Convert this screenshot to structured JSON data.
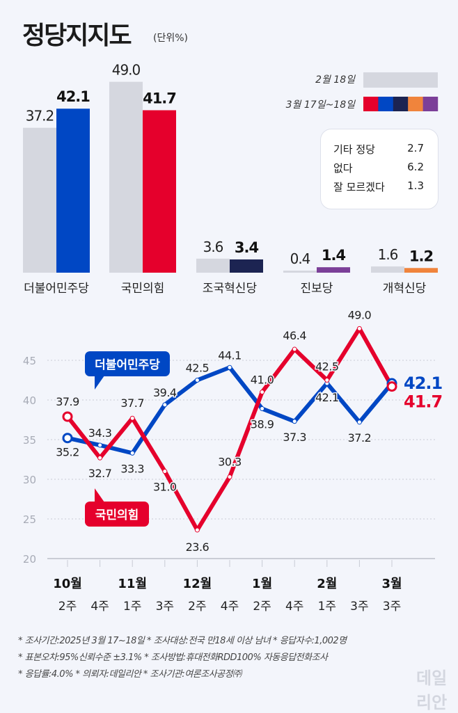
{
  "title": "정당지지도",
  "unit": "(단위%)",
  "legend": {
    "prev": "2월 18일",
    "curr": "3월 17일~18일"
  },
  "colors": {
    "prev": "#d5d7df",
    "minjoo": "#0047c4",
    "ppp": "#e5002c",
    "rebuilding": "#1c2452",
    "progressive": "#7b3f98",
    "reform": "#f0843c"
  },
  "others": [
    {
      "label": "기타 정당",
      "value": "2.7"
    },
    {
      "label": "없다",
      "value": "6.2"
    },
    {
      "label": "잘 모르겠다",
      "value": "1.3"
    }
  ],
  "chart_data": [
    {
      "type": "bar",
      "categories": [
        "더불어민주당",
        "국민의힘",
        "조국혁신당",
        "진보당",
        "개혁신당"
      ],
      "series": [
        {
          "name": "2월 18일",
          "values": [
            37.2,
            49.0,
            3.6,
            0.4,
            1.6
          ]
        },
        {
          "name": "3월 17일~18일",
          "values": [
            42.1,
            41.7,
            3.4,
            1.4,
            1.2
          ]
        }
      ],
      "bar_colors": [
        "#0047c4",
        "#e5002c",
        "#1c2452",
        "#7b3f98",
        "#f0843c"
      ],
      "legend": "top-right"
    },
    {
      "type": "line",
      "x": [
        "2주",
        "4주",
        "1주",
        "3주",
        "2주",
        "4주",
        "2주",
        "4주",
        "1주",
        "3주",
        "3주"
      ],
      "months": [
        {
          "label": "10월",
          "index": 0
        },
        {
          "label": "11월",
          "index": 2
        },
        {
          "label": "12월",
          "index": 4
        },
        {
          "label": "1월",
          "index": 6
        },
        {
          "label": "2월",
          "index": 8
        },
        {
          "label": "3월",
          "index": 10
        }
      ],
      "ylim": [
        20,
        45
      ],
      "yticks": [
        20,
        25,
        30,
        35,
        40,
        45
      ],
      "grid": true,
      "series": [
        {
          "name": "더불어민주당",
          "color": "#0047c4",
          "values": [
            35.2,
            34.3,
            33.3,
            39.4,
            42.5,
            44.1,
            38.9,
            37.3,
            42.1,
            37.2,
            42.1
          ]
        },
        {
          "name": "국민의힘",
          "color": "#e5002c",
          "values": [
            37.9,
            32.7,
            37.7,
            31.0,
            23.6,
            30.3,
            41.0,
            46.4,
            42.5,
            49.0,
            41.7
          ]
        }
      ]
    }
  ],
  "footnotes": [
    "* 조사기간:2025년 3월 17~18일  * 조사대상:전국 만18세 이상 남녀  * 응답자수:1,002명",
    "* 표본오차:95%신뢰수준 ±3.1%  * 조사방법:휴대전화RDD100% 자동응답전화조사",
    "* 응답률:4.0%  * 의뢰자:데일리안  * 조사기관:여론조사공정㈜"
  ],
  "watermark": "데일리안"
}
